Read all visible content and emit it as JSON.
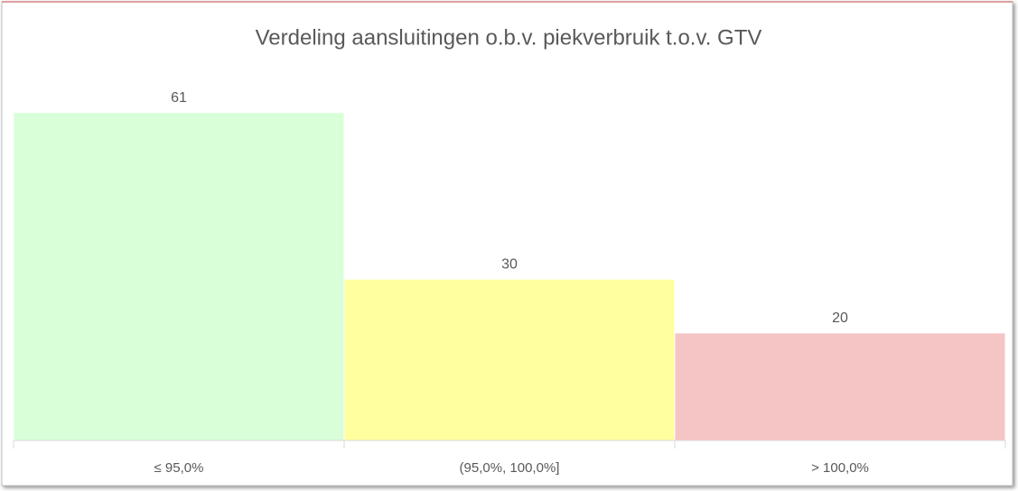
{
  "chart_data": {
    "type": "bar",
    "title": "Verdeling aansluitingen o.b.v. piekverbruik t.o.v. GTV",
    "categories": [
      "≤ 95,0%",
      "(95,0%, 100,0%]",
      "> 100,0%"
    ],
    "values": [
      61,
      30,
      20
    ],
    "colors": [
      "#d9ffd9",
      "#ffff9f",
      "#f5c5c5"
    ],
    "ylim": [
      0,
      70
    ]
  }
}
